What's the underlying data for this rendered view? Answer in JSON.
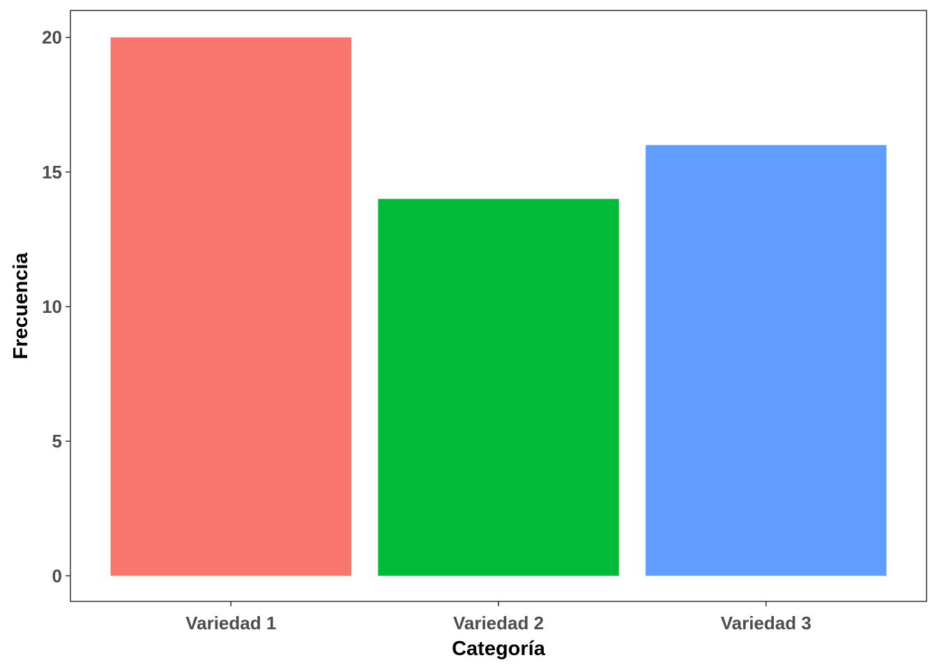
{
  "chart_data": {
    "type": "bar",
    "title": "",
    "xlabel": "Categoría",
    "ylabel": "Frecuencia",
    "categories": [
      "Variedad 1",
      "Variedad 2",
      "Variedad 3"
    ],
    "values": [
      20,
      14,
      16
    ],
    "colors": [
      "#F8766D",
      "#00BA38",
      "#619CFF"
    ],
    "ylim": [
      -0.95,
      21.0
    ],
    "yticks": [
      0,
      5,
      10,
      15,
      20
    ],
    "ytick_labels": [
      "0",
      "5",
      "10",
      "15",
      "20"
    ],
    "grid": false,
    "legend": "none"
  },
  "style": {
    "panel_border_color": "#333333",
    "tick_label_color": "#4d4d4d",
    "axis_title_color": "#000000"
  }
}
